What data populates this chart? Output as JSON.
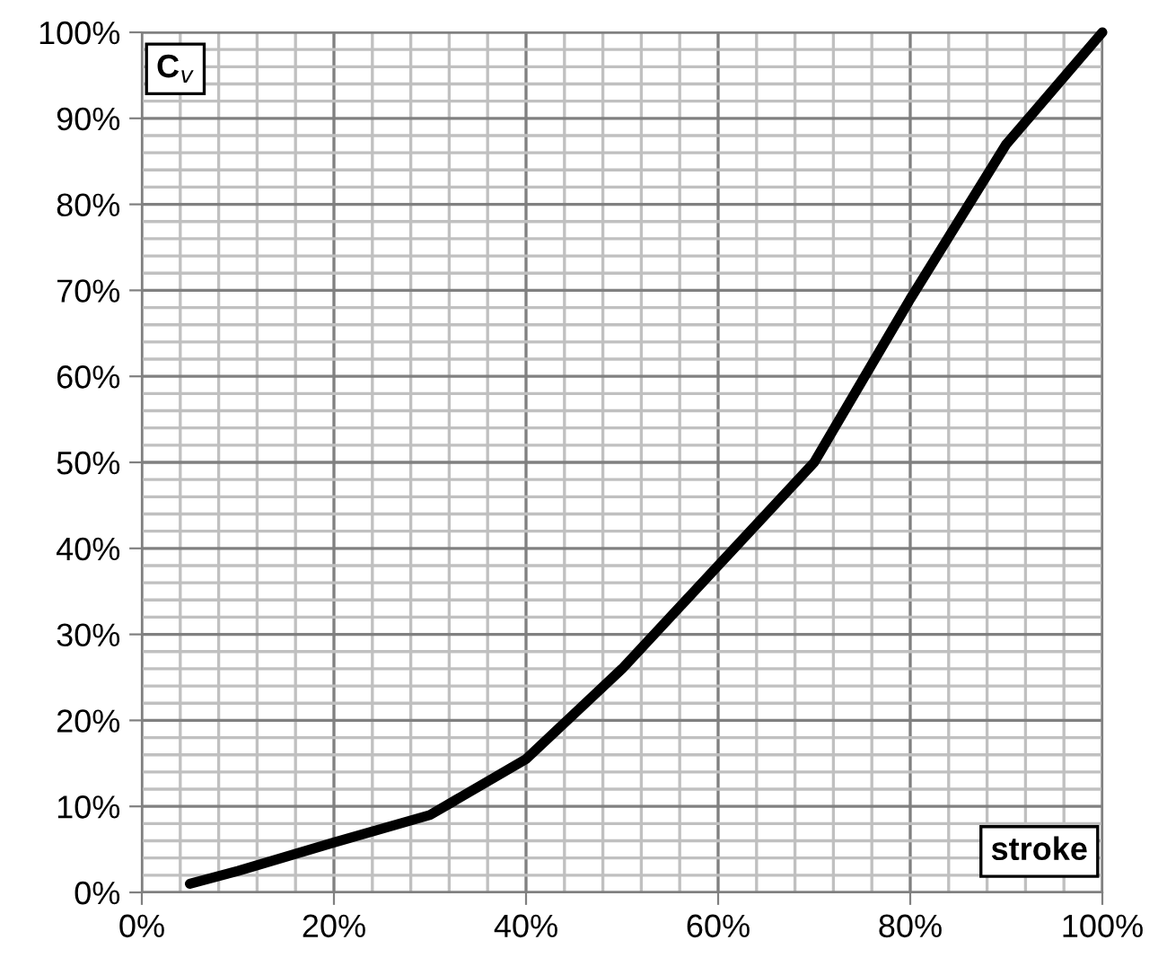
{
  "chart_data": {
    "type": "line",
    "xlabel": "stroke",
    "ylabel": "C$_{v}$",
    "x": [
      5,
      10,
      20,
      30,
      40,
      50,
      60,
      70,
      80,
      90,
      100
    ],
    "series": [
      {
        "color": "#000000",
        "values": [
          1,
          2.5,
          5.8,
          9,
          15.5,
          26,
          38,
          50,
          69,
          87,
          100
        ]
      }
    ],
    "xlim": [
      0,
      100
    ],
    "ylim": [
      0,
      100
    ],
    "xticks": [
      {
        "value": 0,
        "label": "0%"
      },
      {
        "value": 20,
        "label": "20%"
      },
      {
        "value": 40,
        "label": "40%"
      },
      {
        "value": 60,
        "label": "60%"
      },
      {
        "value": 80,
        "label": "80%"
      },
      {
        "value": 100,
        "label": "100%"
      }
    ],
    "yticks": [
      {
        "value": 0,
        "label": "0%"
      },
      {
        "value": 10,
        "label": "10%"
      },
      {
        "value": 20,
        "label": "20%"
      },
      {
        "value": 30,
        "label": "30%"
      },
      {
        "value": 40,
        "label": "40%"
      },
      {
        "value": 50,
        "label": "50%"
      },
      {
        "value": 60,
        "label": "60%"
      },
      {
        "value": 70,
        "label": "70%"
      },
      {
        "value": 80,
        "label": "80%"
      },
      {
        "value": 90,
        "label": "90%"
      },
      {
        "value": 100,
        "label": "100%"
      }
    ],
    "grid": true,
    "line_style": "solid",
    "marker": "none"
  }
}
